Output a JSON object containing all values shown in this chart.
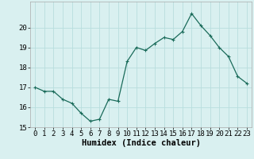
{
  "title": "",
  "xlabel": "Humidex (Indice chaleur)",
  "ylabel": "",
  "x": [
    0,
    1,
    2,
    3,
    4,
    5,
    6,
    7,
    8,
    9,
    10,
    11,
    12,
    13,
    14,
    15,
    16,
    17,
    18,
    19,
    20,
    21,
    22,
    23
  ],
  "y": [
    17.0,
    16.8,
    16.8,
    16.4,
    16.2,
    15.7,
    15.3,
    15.4,
    16.4,
    16.3,
    18.3,
    19.0,
    18.85,
    19.2,
    19.5,
    19.4,
    19.8,
    20.7,
    20.1,
    19.6,
    19.0,
    18.55,
    17.55,
    17.2
  ],
  "line_color": "#1a6b5a",
  "marker": "+",
  "marker_size": 3.5,
  "marker_linewidth": 0.8,
  "bg_color": "#d9f0f0",
  "grid_color": "#b8dede",
  "ylim": [
    15,
    21
  ],
  "xlim": [
    -0.5,
    23.5
  ],
  "yticks": [
    15,
    16,
    17,
    18,
    19,
    20
  ],
  "tick_fontsize": 6.5,
  "xlabel_fontsize": 7.5,
  "linewidth": 0.9
}
